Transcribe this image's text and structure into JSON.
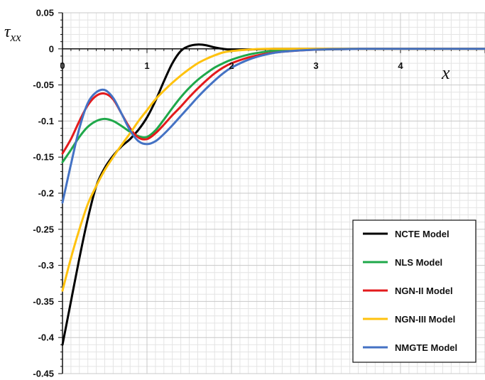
{
  "chart_data": {
    "type": "line",
    "xlabel": "x",
    "ylabel": "τxx",
    "xlim": [
      0,
      5
    ],
    "ylim": [
      -0.45,
      0.05
    ],
    "x_major_ticks": [
      0,
      1,
      2,
      3,
      4
    ],
    "x_tick_labels": [
      "0",
      "1",
      "2",
      "3",
      "4"
    ],
    "y_ticks": [
      0.05,
      0,
      -0.05,
      -0.1,
      -0.15,
      -0.2,
      -0.25,
      -0.3,
      -0.35,
      -0.4,
      -0.45
    ],
    "y_tick_labels": [
      "0.05",
      "0",
      "-0.05",
      "-0.1",
      "-0.15",
      "-0.2",
      "-0.25",
      "-0.3",
      "-0.35",
      "-0.4",
      "-0.45"
    ],
    "grid": true,
    "legend_position": "bottom-right",
    "series": [
      {
        "name": "NCTE Model",
        "color": "#000000",
        "x": [
          0,
          0.1,
          0.2,
          0.3,
          0.4,
          0.5,
          0.6,
          0.7,
          0.8,
          0.9,
          1.0,
          1.1,
          1.2,
          1.3,
          1.4,
          1.5,
          1.6,
          1.7,
          1.8,
          1.9,
          2.0,
          2.2,
          2.5,
          3.0,
          4.0,
          5.0
        ],
        "y": [
          -0.41,
          -0.35,
          -0.29,
          -0.235,
          -0.19,
          -0.165,
          -0.148,
          -0.135,
          -0.125,
          -0.112,
          -0.095,
          -0.072,
          -0.045,
          -0.02,
          -0.003,
          0.004,
          0.006,
          0.005,
          0.002,
          0.0,
          -0.001,
          -0.001,
          0,
          0,
          0,
          0
        ]
      },
      {
        "name": "NLS Model",
        "color": "#1fa84a",
        "x": [
          0,
          0.1,
          0.2,
          0.3,
          0.4,
          0.5,
          0.6,
          0.7,
          0.8,
          0.9,
          1.0,
          1.1,
          1.2,
          1.3,
          1.4,
          1.5,
          1.6,
          1.7,
          1.8,
          1.9,
          2.0,
          2.2,
          2.4,
          2.6,
          3.0,
          3.5,
          4.0,
          5.0
        ],
        "y": [
          -0.157,
          -0.14,
          -0.122,
          -0.108,
          -0.1,
          -0.097,
          -0.1,
          -0.107,
          -0.115,
          -0.121,
          -0.122,
          -0.113,
          -0.098,
          -0.082,
          -0.067,
          -0.054,
          -0.043,
          -0.034,
          -0.026,
          -0.02,
          -0.015,
          -0.008,
          -0.004,
          -0.002,
          -0.001,
          0,
          0,
          0
        ]
      },
      {
        "name": "NGN-II Model",
        "color": "#e31a1c",
        "x": [
          0,
          0.1,
          0.2,
          0.3,
          0.4,
          0.5,
          0.6,
          0.7,
          0.8,
          0.9,
          1.0,
          1.1,
          1.2,
          1.3,
          1.4,
          1.5,
          1.6,
          1.7,
          1.8,
          1.9,
          2.0,
          2.2,
          2.4,
          2.6,
          3.0,
          3.5,
          4.0,
          5.0
        ],
        "y": [
          -0.145,
          -0.125,
          -0.1,
          -0.078,
          -0.065,
          -0.062,
          -0.07,
          -0.09,
          -0.11,
          -0.123,
          -0.125,
          -0.117,
          -0.105,
          -0.092,
          -0.08,
          -0.067,
          -0.055,
          -0.044,
          -0.034,
          -0.026,
          -0.02,
          -0.012,
          -0.007,
          -0.004,
          -0.001,
          0,
          0,
          0
        ]
      },
      {
        "name": "NGN-III Model",
        "color": "#ffc20e",
        "x": [
          0,
          0.1,
          0.2,
          0.3,
          0.4,
          0.5,
          0.6,
          0.7,
          0.8,
          0.9,
          1.0,
          1.1,
          1.2,
          1.3,
          1.4,
          1.5,
          1.6,
          1.7,
          1.8,
          1.9,
          2.0,
          2.2,
          2.4,
          2.6,
          3.0,
          3.5,
          4.0,
          5.0
        ],
        "y": [
          -0.335,
          -0.29,
          -0.25,
          -0.215,
          -0.19,
          -0.168,
          -0.15,
          -0.133,
          -0.117,
          -0.1,
          -0.085,
          -0.07,
          -0.058,
          -0.047,
          -0.037,
          -0.028,
          -0.02,
          -0.014,
          -0.009,
          -0.005,
          -0.003,
          -0.001,
          0,
          0,
          0,
          0,
          0,
          0
        ]
      },
      {
        "name": "NMGTE Model",
        "color": "#4472c4",
        "x": [
          0,
          0.1,
          0.2,
          0.3,
          0.4,
          0.5,
          0.6,
          0.7,
          0.8,
          0.9,
          1.0,
          1.1,
          1.2,
          1.3,
          1.4,
          1.5,
          1.6,
          1.7,
          1.8,
          1.9,
          2.0,
          2.2,
          2.4,
          2.6,
          3.0,
          3.5,
          4.0,
          5.0
        ],
        "y": [
          -0.213,
          -0.16,
          -0.11,
          -0.075,
          -0.06,
          -0.057,
          -0.068,
          -0.09,
          -0.113,
          -0.128,
          -0.132,
          -0.128,
          -0.118,
          -0.106,
          -0.093,
          -0.08,
          -0.067,
          -0.055,
          -0.044,
          -0.034,
          -0.026,
          -0.015,
          -0.008,
          -0.004,
          -0.001,
          0,
          0,
          0
        ]
      }
    ]
  }
}
